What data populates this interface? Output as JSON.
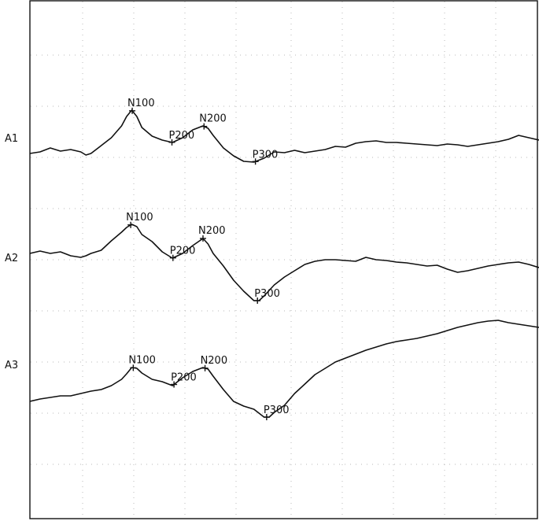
{
  "chart_data": {
    "type": "line",
    "x_domain": [
      0,
      100
    ],
    "grid": true,
    "series": [
      {
        "name": "A1",
        "points": [
          [
            0,
            195
          ],
          [
            2,
            193
          ],
          [
            4,
            188
          ],
          [
            6,
            192
          ],
          [
            8,
            190
          ],
          [
            10,
            193
          ],
          [
            11,
            197
          ],
          [
            12,
            195
          ],
          [
            14,
            185
          ],
          [
            16,
            175
          ],
          [
            18,
            160
          ],
          [
            19,
            148
          ],
          [
            20,
            140
          ],
          [
            21,
            148
          ],
          [
            22,
            162
          ],
          [
            24,
            173
          ],
          [
            26,
            178
          ],
          [
            28,
            181
          ],
          [
            30,
            175
          ],
          [
            32,
            165
          ],
          [
            34,
            160
          ],
          [
            35,
            163
          ],
          [
            36,
            172
          ],
          [
            38,
            188
          ],
          [
            40,
            198
          ],
          [
            42,
            205
          ],
          [
            44,
            206
          ],
          [
            46,
            201
          ],
          [
            48,
            193
          ],
          [
            50,
            194
          ],
          [
            52,
            191
          ],
          [
            54,
            194
          ],
          [
            56,
            192
          ],
          [
            58,
            190
          ],
          [
            60,
            186
          ],
          [
            62,
            187
          ],
          [
            64,
            182
          ],
          [
            66,
            180
          ],
          [
            68,
            179
          ],
          [
            70,
            181
          ],
          [
            72,
            181
          ],
          [
            74,
            182
          ],
          [
            76,
            183
          ],
          [
            78,
            184
          ],
          [
            80,
            185
          ],
          [
            82,
            183
          ],
          [
            84,
            184
          ],
          [
            86,
            186
          ],
          [
            88,
            184
          ],
          [
            90,
            182
          ],
          [
            92,
            180
          ],
          [
            94,
            177
          ],
          [
            96,
            172
          ],
          [
            98,
            175
          ],
          [
            100,
            178
          ]
        ],
        "markers": [
          {
            "label": "N100",
            "x": 20.1
          },
          {
            "label": "P200",
            "x": 27.9
          },
          {
            "label": "N200",
            "x": 34.2
          },
          {
            "label": "P300",
            "x": 44.3
          }
        ]
      },
      {
        "name": "A2",
        "points": [
          [
            0,
            322
          ],
          [
            2,
            319
          ],
          [
            4,
            322
          ],
          [
            6,
            320
          ],
          [
            8,
            325
          ],
          [
            10,
            327
          ],
          [
            11,
            325
          ],
          [
            12,
            322
          ],
          [
            14,
            318
          ],
          [
            16,
            306
          ],
          [
            18,
            295
          ],
          [
            19,
            289
          ],
          [
            20,
            285
          ],
          [
            21,
            288
          ],
          [
            22,
            298
          ],
          [
            24,
            307
          ],
          [
            26,
            320
          ],
          [
            28,
            328
          ],
          [
            30,
            322
          ],
          [
            32,
            312
          ],
          [
            34,
            303
          ],
          [
            35,
            310
          ],
          [
            36,
            322
          ],
          [
            38,
            338
          ],
          [
            40,
            356
          ],
          [
            42,
            370
          ],
          [
            44,
            382
          ],
          [
            45,
            382
          ],
          [
            46,
            376
          ],
          [
            48,
            362
          ],
          [
            50,
            352
          ],
          [
            52,
            344
          ],
          [
            54,
            336
          ],
          [
            56,
            332
          ],
          [
            58,
            330
          ],
          [
            60,
            330
          ],
          [
            62,
            331
          ],
          [
            64,
            332
          ],
          [
            66,
            327
          ],
          [
            68,
            330
          ],
          [
            70,
            331
          ],
          [
            72,
            333
          ],
          [
            74,
            334
          ],
          [
            76,
            336
          ],
          [
            78,
            338
          ],
          [
            80,
            337
          ],
          [
            82,
            342
          ],
          [
            84,
            346
          ],
          [
            86,
            344
          ],
          [
            88,
            341
          ],
          [
            90,
            338
          ],
          [
            92,
            336
          ],
          [
            94,
            334
          ],
          [
            96,
            333
          ],
          [
            98,
            336
          ],
          [
            100,
            340
          ]
        ],
        "markers": [
          {
            "label": "N100",
            "x": 19.8
          },
          {
            "label": "P200",
            "x": 28.1
          },
          {
            "label": "N200",
            "x": 34.0
          },
          {
            "label": "P300",
            "x": 44.7
          }
        ]
      },
      {
        "name": "A3",
        "points": [
          [
            0,
            510
          ],
          [
            2,
            507
          ],
          [
            4,
            505
          ],
          [
            6,
            503
          ],
          [
            8,
            503
          ],
          [
            10,
            500
          ],
          [
            12,
            497
          ],
          [
            14,
            495
          ],
          [
            16,
            490
          ],
          [
            18,
            482
          ],
          [
            19,
            475
          ],
          [
            20,
            467
          ],
          [
            21,
            468
          ],
          [
            22,
            474
          ],
          [
            24,
            482
          ],
          [
            26,
            485
          ],
          [
            28,
            490
          ],
          [
            30,
            480
          ],
          [
            32,
            472
          ],
          [
            34,
            467
          ],
          [
            35,
            469
          ],
          [
            36,
            478
          ],
          [
            38,
            495
          ],
          [
            40,
            510
          ],
          [
            42,
            516
          ],
          [
            44,
            520
          ],
          [
            46,
            530
          ],
          [
            47,
            530
          ],
          [
            48,
            524
          ],
          [
            50,
            515
          ],
          [
            52,
            500
          ],
          [
            54,
            488
          ],
          [
            56,
            476
          ],
          [
            58,
            468
          ],
          [
            60,
            460
          ],
          [
            62,
            455
          ],
          [
            64,
            450
          ],
          [
            66,
            445
          ],
          [
            68,
            441
          ],
          [
            70,
            437
          ],
          [
            72,
            434
          ],
          [
            74,
            432
          ],
          [
            76,
            430
          ],
          [
            78,
            427
          ],
          [
            80,
            424
          ],
          [
            82,
            420
          ],
          [
            84,
            416
          ],
          [
            86,
            413
          ],
          [
            88,
            410
          ],
          [
            90,
            408
          ],
          [
            92,
            407
          ],
          [
            94,
            410
          ],
          [
            96,
            412
          ],
          [
            98,
            414
          ],
          [
            100,
            416
          ]
        ],
        "markers": [
          {
            "label": "N100",
            "x": 20.3
          },
          {
            "label": "P200",
            "x": 28.3
          },
          {
            "label": "N200",
            "x": 34.4
          },
          {
            "label": "P300",
            "x": 46.5
          }
        ]
      }
    ]
  }
}
